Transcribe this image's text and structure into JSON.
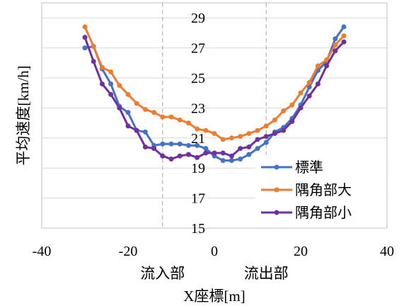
{
  "chart_data": {
    "type": "line",
    "xlabel": "X座標[m]",
    "ylabel": "平均速度[km/h]",
    "xlim": [
      -40,
      40
    ],
    "ylim": [
      15,
      30
    ],
    "x_ticks": [
      -40,
      -20,
      0,
      20,
      40
    ],
    "y_ticks": [
      15,
      17,
      19,
      21,
      23,
      25,
      27,
      29
    ],
    "x_ticks_label": [
      "-40",
      "-20",
      "0",
      "20",
      "40"
    ],
    "y_ticks_label": [
      "15",
      "17",
      "19",
      "21",
      "23",
      "25",
      "27",
      "29"
    ],
    "grid": "horizontal",
    "vlines": [
      -12,
      12
    ],
    "region_labels": [
      {
        "text": "流入部",
        "x": -12
      },
      {
        "text": "流出部",
        "x": 12
      }
    ],
    "legend_position": "bottom-right",
    "series": [
      {
        "name": "標準",
        "color": "#4472C4",
        "x": [
          -30,
          -28,
          -26,
          -24,
          -22,
          -20,
          -18,
          -16,
          -14,
          -12,
          -10,
          -8,
          -6,
          -4,
          -2,
          0,
          2,
          4,
          6,
          8,
          10,
          12,
          14,
          16,
          18,
          20,
          22,
          24,
          26,
          28,
          30
        ],
        "y": [
          27.0,
          27.1,
          25.6,
          24.6,
          23.1,
          22.7,
          21.5,
          21.4,
          20.5,
          20.6,
          20.6,
          20.6,
          20.5,
          20.5,
          20.3,
          19.8,
          19.5,
          19.5,
          19.6,
          19.9,
          20.3,
          20.7,
          21.4,
          21.7,
          22.3,
          23.2,
          24.4,
          25.5,
          26.1,
          27.6,
          28.4
        ]
      },
      {
        "name": "隅角部大",
        "color": "#ED7D31",
        "x": [
          -30,
          -28,
          -26,
          -24,
          -22,
          -20,
          -18,
          -16,
          -14,
          -12,
          -10,
          -8,
          -6,
          -4,
          -2,
          0,
          2,
          4,
          6,
          8,
          10,
          12,
          14,
          16,
          18,
          20,
          22,
          24,
          26,
          28,
          30
        ],
        "y": [
          28.4,
          27.1,
          25.7,
          25.4,
          24.5,
          23.9,
          23.3,
          22.9,
          22.7,
          22.4,
          22.4,
          22.2,
          22.0,
          21.6,
          21.5,
          21.3,
          20.9,
          21.0,
          21.1,
          21.3,
          21.5,
          21.8,
          22.2,
          22.8,
          23.2,
          24.0,
          24.7,
          25.8,
          26.2,
          27.2,
          27.8
        ]
      },
      {
        "name": "隅角部小",
        "color": "#7030A0",
        "x": [
          -30,
          -28,
          -26,
          -24,
          -22,
          -20,
          -18,
          -16,
          -14,
          -12,
          -10,
          -8,
          -6,
          -4,
          -2,
          0,
          2,
          4,
          6,
          8,
          10,
          12,
          14,
          16,
          18,
          20,
          22,
          24,
          26,
          28,
          30
        ],
        "y": [
          27.7,
          26.1,
          24.6,
          23.9,
          23.0,
          21.8,
          21.5,
          20.4,
          20.3,
          19.8,
          19.6,
          19.8,
          19.9,
          19.7,
          20.0,
          20.0,
          20.0,
          19.8,
          20.3,
          20.4,
          20.9,
          21.1,
          21.3,
          21.5,
          22.1,
          23.0,
          23.8,
          24.6,
          25.8,
          26.8,
          27.4
        ]
      }
    ]
  }
}
